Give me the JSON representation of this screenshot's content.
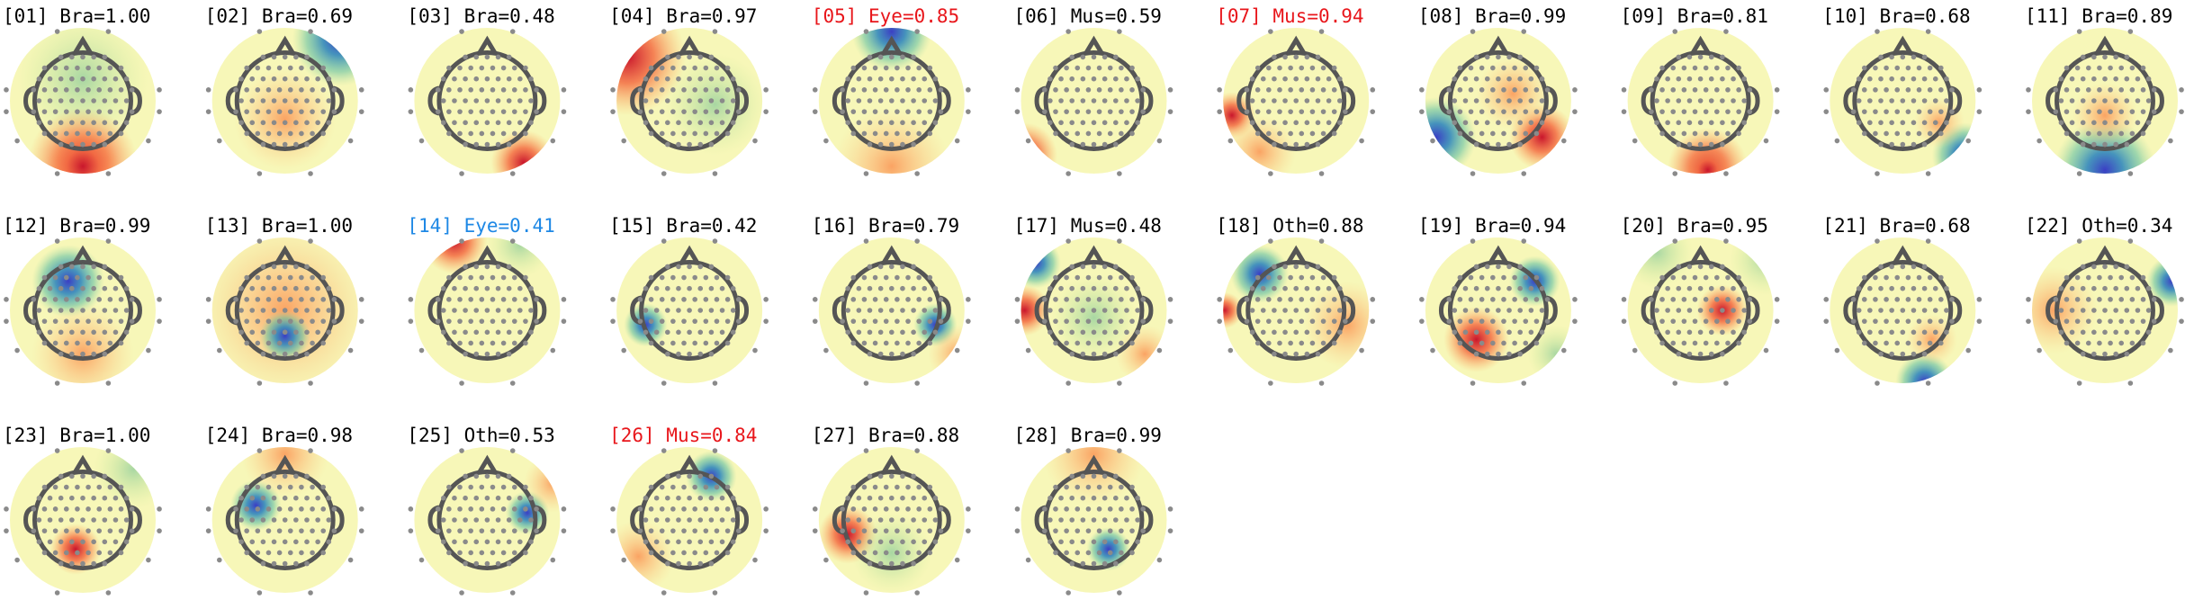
{
  "components": [
    {
      "label": "[01] Bra=1.00",
      "color": "#000000"
    },
    {
      "label": "[02] Bra=0.69",
      "color": "#000000"
    },
    {
      "label": "[03] Bra=0.48",
      "color": "#000000"
    },
    {
      "label": "[04] Bra=0.97",
      "color": "#000000"
    },
    {
      "label": "[05] Eye=0.85",
      "color": "#e8161b"
    },
    {
      "label": "[06] Mus=0.59",
      "color": "#000000"
    },
    {
      "label": "[07] Mus=0.94",
      "color": "#e8161b"
    },
    {
      "label": "[08] Bra=0.99",
      "color": "#000000"
    },
    {
      "label": "[09] Bra=0.81",
      "color": "#000000"
    },
    {
      "label": "[10] Bra=0.68",
      "color": "#000000"
    },
    {
      "label": "[11] Bra=0.89",
      "color": "#000000"
    },
    {
      "label": "[12] Bra=0.99",
      "color": "#000000"
    },
    {
      "label": "[13] Bra=1.00",
      "color": "#000000"
    },
    {
      "label": "[14] Eye=0.41",
      "color": "#1e88e5"
    },
    {
      "label": "[15] Bra=0.42",
      "color": "#000000"
    },
    {
      "label": "[16] Bra=0.79",
      "color": "#000000"
    },
    {
      "label": "[17] Mus=0.48",
      "color": "#000000"
    },
    {
      "label": "[18] Oth=0.88",
      "color": "#000000"
    },
    {
      "label": "[19] Bra=0.94",
      "color": "#000000"
    },
    {
      "label": "[20] Bra=0.95",
      "color": "#000000"
    },
    {
      "label": "[21] Bra=0.68",
      "color": "#000000"
    },
    {
      "label": "[22] Oth=0.34",
      "color": "#000000"
    },
    {
      "label": "[23] Bra=1.00",
      "color": "#000000"
    },
    {
      "label": "[24] Bra=0.98",
      "color": "#000000"
    },
    {
      "label": "[25] Oth=0.53",
      "color": "#000000"
    },
    {
      "label": "[26] Mus=0.84",
      "color": "#e8161b"
    },
    {
      "label": "[27] Bra=0.88",
      "color": "#000000"
    },
    {
      "label": "[28] Bra=0.99",
      "color": "#000000"
    }
  ]
}
